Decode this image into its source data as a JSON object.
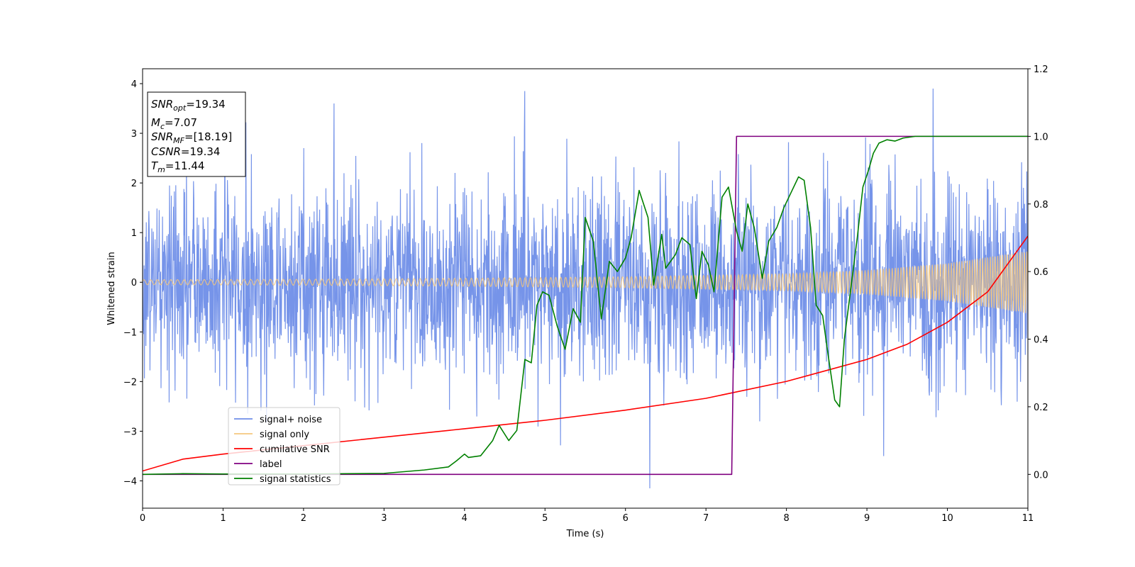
{
  "chart_data": {
    "type": "line",
    "xlabel": "Time (s)",
    "ylabel": "Whitened strain",
    "xlim": [
      0,
      11
    ],
    "ylim": [
      -4.55,
      4.3
    ],
    "y2lim": [
      -0.1,
      1.2
    ],
    "xticks": [
      0,
      1,
      2,
      3,
      4,
      5,
      6,
      7,
      8,
      9,
      10,
      11
    ],
    "yticks": [
      -4,
      -3,
      -2,
      -1,
      0,
      1,
      2,
      3,
      4
    ],
    "y2ticks": [
      "0.0",
      "0.2",
      "0.4",
      "0.6",
      "0.8",
      "1.0",
      "1.2"
    ],
    "grid": false,
    "legend": {
      "placement": "lower-left",
      "entries": [
        {
          "label": "signal+ noise",
          "color": "#6f8ee8"
        },
        {
          "label": "signal only",
          "color": "#f5c77e"
        },
        {
          "label": "cumilative SNR",
          "color": "#ff0000"
        },
        {
          "label": "label",
          "color": "#800080"
        },
        {
          "label": "signal statistics",
          "color": "#008000"
        }
      ]
    },
    "annotation": {
      "snr_opt": "19.34",
      "mc": "7.07",
      "snr_mf": "[18.19]",
      "csnr": "19.34",
      "tm": "11.44"
    },
    "series": [
      {
        "name": "signal+ noise",
        "axis": "left",
        "color": "#6f8ee8",
        "style": "noise",
        "sigma": 1.0,
        "approx_peak_extremes": [
          {
            "x": 1.02,
            "y": 3.4
          },
          {
            "x": 2.38,
            "y": 3.6
          },
          {
            "x": 4.75,
            "y": 3.85
          },
          {
            "x": 6.3,
            "y": -4.15
          },
          {
            "x": 9.82,
            "y": 3.9
          },
          {
            "x": 9.21,
            "y": -3.5
          }
        ]
      },
      {
        "name": "signal only",
        "axis": "left",
        "color": "#f5c77e",
        "style": "chirp",
        "amplitude_envelope": [
          {
            "x": 0,
            "y": 0.05
          },
          {
            "x": 2,
            "y": 0.06
          },
          {
            "x": 4,
            "y": 0.08
          },
          {
            "x": 6,
            "y": 0.11
          },
          {
            "x": 8,
            "y": 0.17
          },
          {
            "x": 9,
            "y": 0.24
          },
          {
            "x": 10,
            "y": 0.38
          },
          {
            "x": 11,
            "y": 0.63
          }
        ]
      },
      {
        "name": "cumilative SNR",
        "axis": "right",
        "color": "#ff0000",
        "points": [
          {
            "x": 0,
            "y": 0.01
          },
          {
            "x": 0.5,
            "y": 0.045
          },
          {
            "x": 1,
            "y": 0.06
          },
          {
            "x": 2,
            "y": 0.085
          },
          {
            "x": 3,
            "y": 0.11
          },
          {
            "x": 4,
            "y": 0.135
          },
          {
            "x": 5,
            "y": 0.16
          },
          {
            "x": 6,
            "y": 0.19
          },
          {
            "x": 7,
            "y": 0.225
          },
          {
            "x": 8,
            "y": 0.275
          },
          {
            "x": 9,
            "y": 0.34
          },
          {
            "x": 9.5,
            "y": 0.385
          },
          {
            "x": 10,
            "y": 0.45
          },
          {
            "x": 10.5,
            "y": 0.54
          },
          {
            "x": 11,
            "y": 0.705
          }
        ]
      },
      {
        "name": "label",
        "axis": "right",
        "color": "#800080",
        "points": [
          {
            "x": 0,
            "y": 0
          },
          {
            "x": 7.32,
            "y": 0
          },
          {
            "x": 7.38,
            "y": 1.0
          },
          {
            "x": 11,
            "y": 1.0
          }
        ]
      },
      {
        "name": "signal statistics",
        "axis": "right",
        "color": "#008000",
        "points": [
          {
            "x": 0,
            "y": 0
          },
          {
            "x": 0.5,
            "y": 0.002
          },
          {
            "x": 1,
            "y": 0.001
          },
          {
            "x": 2,
            "y": 0.001
          },
          {
            "x": 3,
            "y": 0.003
          },
          {
            "x": 3.5,
            "y": 0.013
          },
          {
            "x": 3.8,
            "y": 0.022
          },
          {
            "x": 3.9,
            "y": 0.04
          },
          {
            "x": 4.0,
            "y": 0.06
          },
          {
            "x": 4.05,
            "y": 0.05
          },
          {
            "x": 4.2,
            "y": 0.055
          },
          {
            "x": 4.35,
            "y": 0.1
          },
          {
            "x": 4.43,
            "y": 0.145
          },
          {
            "x": 4.55,
            "y": 0.1
          },
          {
            "x": 4.65,
            "y": 0.13
          },
          {
            "x": 4.75,
            "y": 0.34
          },
          {
            "x": 4.83,
            "y": 0.33
          },
          {
            "x": 4.9,
            "y": 0.5
          },
          {
            "x": 4.97,
            "y": 0.54
          },
          {
            "x": 5.05,
            "y": 0.53
          },
          {
            "x": 5.15,
            "y": 0.44
          },
          {
            "x": 5.25,
            "y": 0.37
          },
          {
            "x": 5.35,
            "y": 0.49
          },
          {
            "x": 5.44,
            "y": 0.45
          },
          {
            "x": 5.5,
            "y": 0.76
          },
          {
            "x": 5.6,
            "y": 0.69
          },
          {
            "x": 5.7,
            "y": 0.46
          },
          {
            "x": 5.8,
            "y": 0.63
          },
          {
            "x": 5.9,
            "y": 0.6
          },
          {
            "x": 6.0,
            "y": 0.64
          },
          {
            "x": 6.07,
            "y": 0.7
          },
          {
            "x": 6.17,
            "y": 0.84
          },
          {
            "x": 6.28,
            "y": 0.76
          },
          {
            "x": 6.35,
            "y": 0.56
          },
          {
            "x": 6.45,
            "y": 0.71
          },
          {
            "x": 6.5,
            "y": 0.61
          },
          {
            "x": 6.62,
            "y": 0.65
          },
          {
            "x": 6.7,
            "y": 0.7
          },
          {
            "x": 6.8,
            "y": 0.68
          },
          {
            "x": 6.88,
            "y": 0.52
          },
          {
            "x": 6.95,
            "y": 0.66
          },
          {
            "x": 7.03,
            "y": 0.62
          },
          {
            "x": 7.1,
            "y": 0.54
          },
          {
            "x": 7.2,
            "y": 0.82
          },
          {
            "x": 7.28,
            "y": 0.85
          },
          {
            "x": 7.38,
            "y": 0.72
          },
          {
            "x": 7.45,
            "y": 0.66
          },
          {
            "x": 7.52,
            "y": 0.8
          },
          {
            "x": 7.6,
            "y": 0.73
          },
          {
            "x": 7.7,
            "y": 0.58
          },
          {
            "x": 7.78,
            "y": 0.69
          },
          {
            "x": 7.88,
            "y": 0.73
          },
          {
            "x": 7.97,
            "y": 0.79
          },
          {
            "x": 8.07,
            "y": 0.84
          },
          {
            "x": 8.15,
            "y": 0.88
          },
          {
            "x": 8.22,
            "y": 0.87
          },
          {
            "x": 8.3,
            "y": 0.73
          },
          {
            "x": 8.37,
            "y": 0.5
          },
          {
            "x": 8.45,
            "y": 0.47
          },
          {
            "x": 8.52,
            "y": 0.35
          },
          {
            "x": 8.6,
            "y": 0.22
          },
          {
            "x": 8.66,
            "y": 0.2
          },
          {
            "x": 8.72,
            "y": 0.4
          },
          {
            "x": 8.8,
            "y": 0.55
          },
          {
            "x": 8.88,
            "y": 0.7
          },
          {
            "x": 8.95,
            "y": 0.85
          },
          {
            "x": 9.02,
            "y": 0.9
          },
          {
            "x": 9.08,
            "y": 0.95
          },
          {
            "x": 9.15,
            "y": 0.98
          },
          {
            "x": 9.25,
            "y": 0.99
          },
          {
            "x": 9.35,
            "y": 0.986
          },
          {
            "x": 9.45,
            "y": 0.995
          },
          {
            "x": 9.6,
            "y": 1.0
          },
          {
            "x": 10,
            "y": 1.0
          },
          {
            "x": 11,
            "y": 1.0
          }
        ]
      }
    ]
  },
  "colors": {
    "noise": "#6f8ee8",
    "signal": "#f5c77e",
    "cumulative": "#ff0000",
    "label": "#800080",
    "statistics": "#008000"
  }
}
